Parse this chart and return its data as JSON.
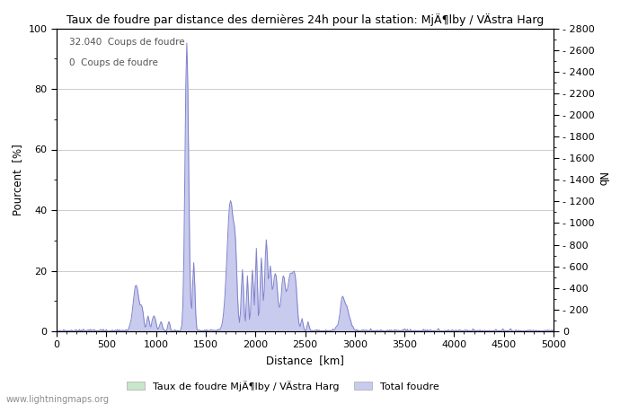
{
  "title": "Taux de foudre par distance des dernières 24h pour la station: MjÄ¶lby / VÄstra Harg",
  "xlabel": "Distance  [km]",
  "ylabel_left": "Pourcent  [%]",
  "ylabel_right": "Nb",
  "annotation_line1": "32.040  Coups de foudre",
  "annotation_line2": "0  Coups de foudre",
  "watermark": "www.lightningmaps.org",
  "legend_label1": "Taux de foudre MjÄ¶lby / VÄstra Harg",
  "legend_label2": "Total foudre",
  "xlim": [
    0,
    5000
  ],
  "ylim_left": [
    0,
    100
  ],
  "ylim_right": [
    0,
    2800
  ],
  "xticks": [
    0,
    500,
    1000,
    1500,
    2000,
    2500,
    3000,
    3500,
    4000,
    4500,
    5000
  ],
  "yticks_left": [
    0,
    20,
    40,
    60,
    80,
    100
  ],
  "yticks_right": [
    0,
    200,
    400,
    600,
    800,
    1000,
    1200,
    1400,
    1600,
    1800,
    2000,
    2200,
    2400,
    2600,
    2800
  ],
  "fill_color_green": "#c8e6c9",
  "fill_color_blue": "#c8caee",
  "line_color": "#8080cc",
  "background_color": "#ffffff",
  "grid_color": "#cccccc"
}
